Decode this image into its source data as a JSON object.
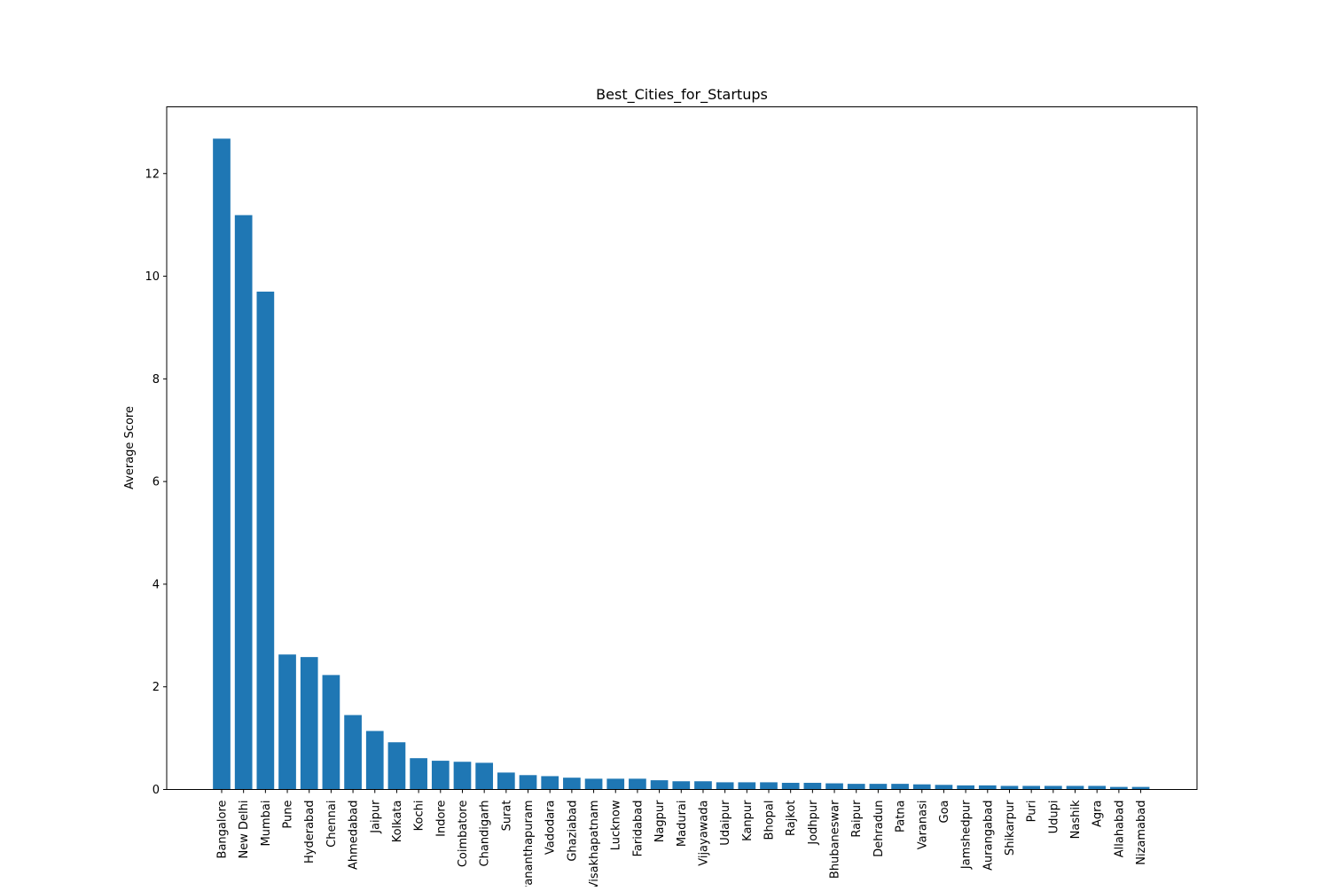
{
  "chart_data": {
    "type": "bar",
    "title": "Best_Cities_for_Startups",
    "xlabel": "",
    "ylabel": "Average Score",
    "ylim": [
      0,
      13.3
    ],
    "yticks": [
      0,
      2,
      4,
      6,
      8,
      10,
      12
    ],
    "grid": false,
    "bar_color": "#1f77b4",
    "categories": [
      "Bangalore",
      "New Delhi",
      "Mumbai",
      "Pune",
      "Hyderabad",
      "Chennai",
      "Ahmedabad",
      "Jaipur",
      "Kolkata",
      "Kochi",
      "Indore",
      "Coimbatore",
      "Chandigarh",
      "Surat",
      "Thiruvananthapuram",
      "Vadodara",
      "Ghaziabad",
      "Visakhapatnam",
      "Lucknow",
      "Faridabad",
      "Nagpur",
      "Madurai",
      "Vijayawada",
      "Udaipur",
      "Kanpur",
      "Bhopal",
      "Rajkot",
      "Jodhpur",
      "Bhubaneswar",
      "Raipur",
      "Dehradun",
      "Patna",
      "Varanasi",
      "Goa",
      "Jamshedpur",
      "Aurangabad",
      "Shikarpur",
      "Puri",
      "Udupi",
      "Nashik",
      "Agra",
      "Allahabad",
      "Nizamabad"
    ],
    "values": [
      12.68,
      11.19,
      9.7,
      2.63,
      2.58,
      2.23,
      1.45,
      1.14,
      0.92,
      0.61,
      0.56,
      0.54,
      0.52,
      0.33,
      0.28,
      0.26,
      0.23,
      0.21,
      0.21,
      0.21,
      0.18,
      0.16,
      0.16,
      0.14,
      0.14,
      0.14,
      0.13,
      0.13,
      0.12,
      0.11,
      0.11,
      0.11,
      0.1,
      0.09,
      0.08,
      0.08,
      0.07,
      0.07,
      0.07,
      0.07,
      0.07,
      0.05,
      0.05
    ]
  }
}
